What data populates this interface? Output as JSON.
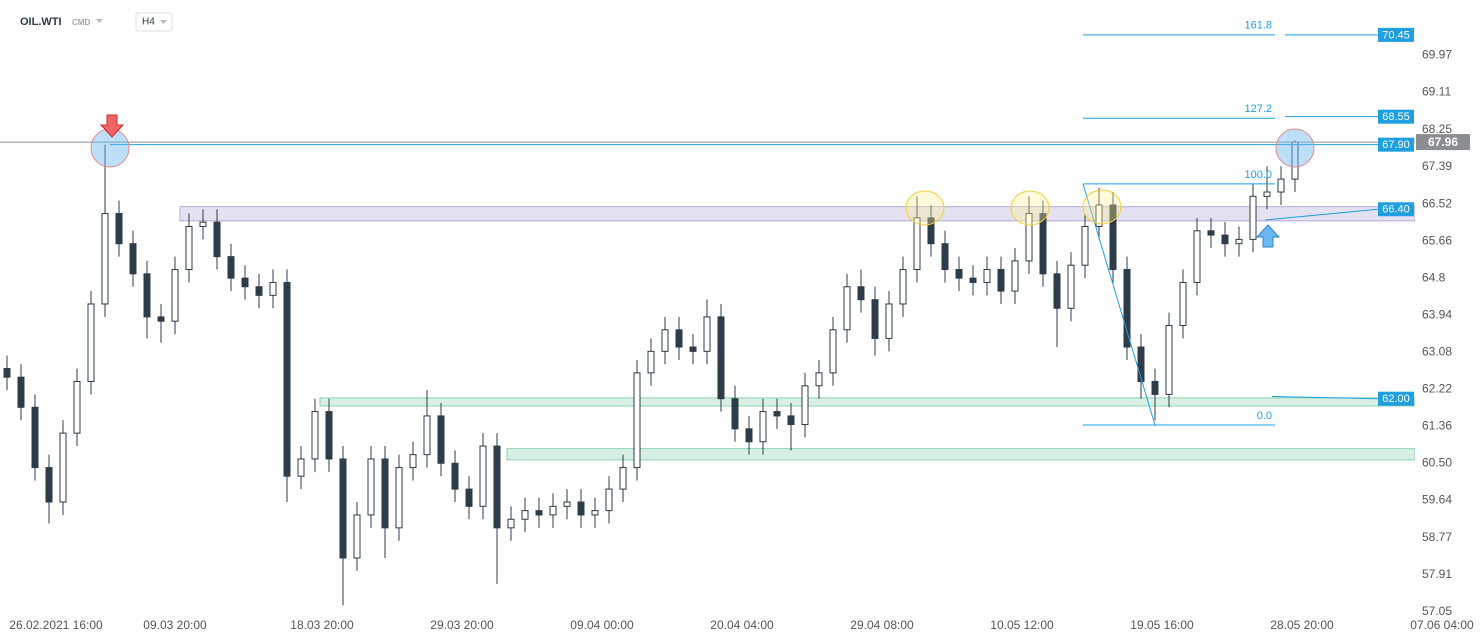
{
  "chart_data": {
    "type": "candlestick",
    "symbol": "OIL.WTI",
    "source": "CMD",
    "timeframe": "H4",
    "open": [
      62.7,
      62.5,
      61.8,
      60.4,
      59.6,
      61.2,
      62.4,
      64.2,
      66.3,
      65.6,
      64.9,
      63.9,
      63.8,
      65.0,
      66.0,
      66.1,
      65.3,
      64.8,
      64.6,
      64.4,
      64.7,
      60.2,
      60.6,
      61.7,
      60.6,
      58.3,
      59.3,
      60.6,
      59.0,
      60.4,
      60.7,
      61.6,
      60.5,
      59.9,
      59.5,
      60.9,
      59.0,
      59.2,
      59.4,
      59.3,
      59.5,
      59.6,
      59.3,
      59.4,
      59.9,
      60.4,
      62.6,
      63.1,
      63.6,
      63.2,
      63.1,
      63.9,
      62.0,
      61.3,
      61.0,
      61.7,
      61.6,
      61.4,
      62.3,
      62.6,
      63.6,
      64.6,
      64.3,
      63.4,
      64.2,
      65.0,
      66.2,
      65.6,
      65.0,
      64.8,
      64.7,
      65.0,
      64.5,
      65.2,
      66.3,
      64.9,
      64.1,
      65.1,
      66.0,
      66.5,
      65.0,
      63.2,
      62.4,
      62.1,
      63.7,
      64.7,
      65.9,
      65.8,
      65.6,
      65.7,
      66.7,
      66.8,
      67.1
    ],
    "high": [
      63.0,
      62.8,
      62.1,
      60.7,
      61.5,
      62.7,
      64.5,
      67.9,
      66.6,
      65.9,
      65.2,
      64.2,
      65.3,
      66.3,
      66.4,
      66.4,
      65.6,
      65.1,
      64.9,
      65.0,
      65.0,
      60.9,
      62.0,
      62.0,
      60.9,
      59.6,
      60.9,
      60.9,
      60.7,
      61.0,
      62.2,
      61.9,
      60.8,
      60.2,
      61.2,
      61.2,
      59.5,
      59.7,
      59.7,
      59.8,
      59.9,
      59.9,
      59.7,
      60.2,
      60.7,
      62.9,
      63.4,
      63.9,
      63.9,
      63.5,
      64.3,
      64.2,
      62.3,
      61.6,
      62.0,
      62.0,
      61.9,
      62.6,
      62.9,
      63.9,
      64.9,
      65.0,
      64.6,
      64.5,
      65.3,
      66.7,
      66.5,
      65.9,
      65.3,
      65.1,
      65.3,
      65.3,
      65.5,
      66.7,
      66.6,
      65.2,
      65.4,
      66.3,
      66.9,
      66.8,
      65.3,
      63.5,
      62.7,
      64.0,
      65.0,
      66.2,
      66.2,
      66.1,
      66.0,
      67.0,
      67.4,
      67.4,
      68.0
    ],
    "low": [
      62.2,
      61.5,
      60.1,
      59.1,
      59.3,
      60.9,
      62.1,
      63.9,
      65.3,
      64.6,
      63.4,
      63.3,
      63.5,
      64.7,
      65.7,
      65.0,
      64.5,
      64.3,
      64.1,
      64.1,
      59.6,
      59.9,
      60.3,
      60.3,
      57.2,
      58.0,
      59.0,
      58.3,
      58.7,
      60.1,
      60.4,
      60.2,
      59.6,
      59.2,
      59.2,
      57.7,
      58.7,
      58.9,
      59.0,
      59.0,
      59.2,
      59.0,
      59.0,
      59.1,
      59.6,
      60.1,
      62.3,
      62.8,
      62.9,
      62.8,
      62.8,
      61.7,
      61.0,
      60.7,
      60.7,
      61.3,
      60.8,
      61.1,
      62.0,
      62.3,
      63.3,
      64.0,
      63.0,
      63.1,
      63.9,
      64.7,
      65.3,
      64.7,
      64.5,
      64.4,
      64.4,
      64.2,
      64.2,
      64.9,
      64.6,
      63.2,
      63.8,
      64.8,
      65.7,
      64.7,
      62.9,
      62.0,
      61.5,
      61.8,
      63.4,
      64.4,
      65.5,
      65.3,
      65.3,
      65.4,
      66.4,
      66.5,
      66.8
    ],
    "close": [
      62.5,
      61.8,
      60.4,
      59.6,
      61.2,
      62.4,
      64.2,
      66.3,
      65.6,
      64.9,
      63.9,
      63.8,
      65.0,
      66.0,
      66.1,
      65.3,
      64.8,
      64.6,
      64.4,
      64.7,
      60.2,
      60.6,
      61.7,
      60.6,
      58.3,
      59.3,
      60.6,
      59.0,
      60.4,
      60.7,
      61.6,
      60.5,
      59.9,
      59.5,
      60.9,
      59.0,
      59.2,
      59.4,
      59.3,
      59.5,
      59.6,
      59.3,
      59.4,
      59.9,
      60.4,
      62.6,
      63.1,
      63.6,
      63.2,
      63.1,
      63.9,
      62.0,
      61.3,
      61.0,
      61.7,
      61.6,
      61.4,
      62.3,
      62.6,
      63.6,
      64.6,
      64.3,
      63.4,
      64.2,
      65.0,
      66.2,
      65.6,
      65.0,
      64.8,
      64.7,
      65.0,
      64.5,
      65.2,
      66.3,
      64.9,
      64.1,
      65.1,
      66.0,
      66.5,
      65.0,
      63.2,
      62.4,
      62.1,
      63.7,
      64.7,
      65.9,
      65.8,
      65.6,
      65.7,
      66.7,
      66.8,
      67.1,
      67.96
    ],
    "up_color": "#ffffff",
    "down_color": "#2e3b48",
    "wick_color": "#2e3b48",
    "xlim": [
      -0.5,
      102.5
    ],
    "xticks": [
      {
        "value": 3.5,
        "label": "26.02.2021  16:00"
      },
      {
        "value": 12,
        "label": "09.03  20:00"
      },
      {
        "value": 22.5,
        "label": "18.03  20:00"
      },
      {
        "value": 32.5,
        "label": "29.03  20:00"
      },
      {
        "value": 42.5,
        "label": "09.04  00:00"
      },
      {
        "value": 52.5,
        "label": "20.04  04:00"
      },
      {
        "value": 62.5,
        "label": "29.04  08:00"
      },
      {
        "value": 72.5,
        "label": "10.05  12:00"
      },
      {
        "value": 82.5,
        "label": "19.05  16:00"
      },
      {
        "value": 92.5,
        "label": "28.05  20:00"
      },
      {
        "value": 102.5,
        "label": "07.06  04:00"
      }
    ],
    "ylim": [
      56.86,
      71.26
    ],
    "yticks": [
      69.97,
      69.11,
      68.25,
      67.39,
      66.52,
      65.66,
      64.8,
      63.94,
      63.08,
      62.22,
      61.36,
      {
        "value": 60.5,
        "label": "60.50"
      },
      59.64,
      58.77,
      57.91,
      57.05
    ],
    "last_price": 67.96,
    "last_color": "#8a8d91",
    "price_levels": [
      70.45,
      68.55,
      {
        "value": 67.9,
        "label": "67.90"
      },
      {
        "value": 66.4,
        "label": "66.40"
      },
      {
        "value": 62,
        "label": "62.00"
      }
    ],
    "level_color": "#1f9fe0",
    "zones": [
      {
        "low": 66.13,
        "high": 66.46,
        "color": "#b3aad6"
      },
      {
        "low": 61.83,
        "high": 62.02,
        "color": "#8fd3b1"
      },
      {
        "low": 60.58,
        "high": 60.84,
        "color": "#8fd3b1"
      }
    ],
    "fibonacci": {
      "low": 61.39,
      "high": 66.99,
      "color": "#1f9fe0",
      "levels": [
        {
          "ratio": 161.8
        },
        {
          "ratio": 127.2
        },
        {
          "ratio": {
            "value": 100,
            "label": "100.0"
          }
        },
        {
          "ratio": {
            "value": 0,
            "label": "0.0"
          }
        }
      ]
    }
  }
}
